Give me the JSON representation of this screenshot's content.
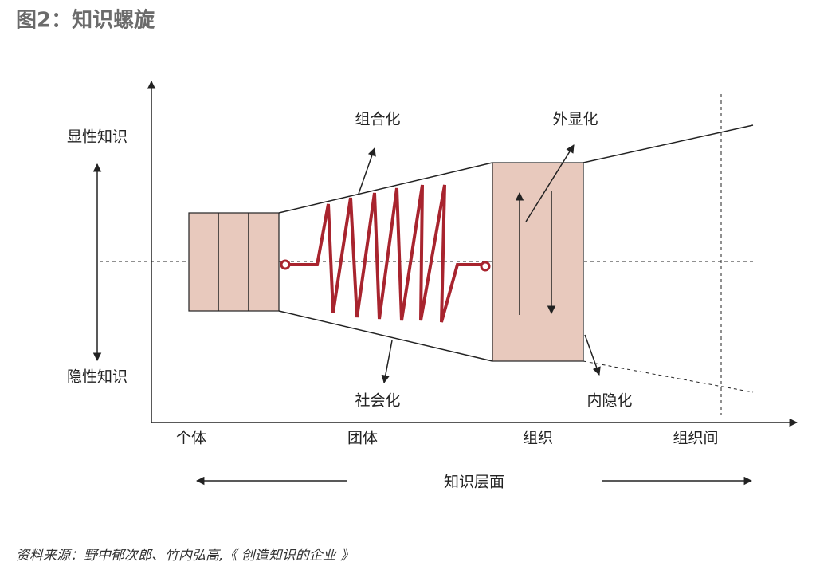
{
  "header": {
    "title": "图2：知识螺旋"
  },
  "y_axis": {
    "top_label": "显性知识",
    "bottom_label": "隐性知识"
  },
  "processes": {
    "combination": "组合化",
    "externalization": "外显化",
    "socialization": "社会化",
    "internalization": "内隐化"
  },
  "x_axis": {
    "levels": [
      "个体",
      "团体",
      "组织",
      "组织间"
    ],
    "title": "知识层面"
  },
  "footer": {
    "source": "资料来源：野中郁次郎、竹内弘高,《 创造知识的企业 》"
  }
}
